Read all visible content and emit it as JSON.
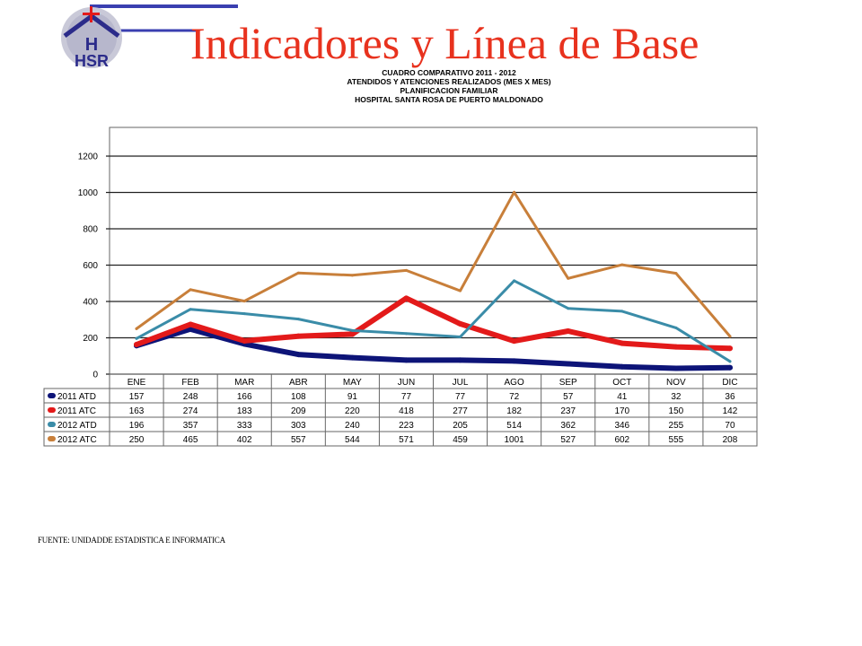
{
  "slide": {
    "title": "Indicadores y Línea de Base",
    "logo_text": "HSR",
    "source": "FUENTE: UNIDADDE ESTADISTICA E INFORMATICA"
  },
  "chart_header": [
    "CUADRO COMPARATIVO 2011 - 2012",
    "ATENDIDOS Y ATENCIONES  REALIZADOS (MES X MES)",
    "PLANIFICACION FAMILIAR",
    "HOSPITAL  SANTA ROSA DE PUERTO MALDONADO"
  ],
  "colors": {
    "title": "#e8321e",
    "2011 ATD": "#0d1478",
    "2011 ATC": "#e31a1a",
    "2012 ATD": "#3a8ca8",
    "2012 ATC": "#c87f3a"
  },
  "chart_data": {
    "type": "line",
    "title": "CUADRO COMPARATIVO 2011 - 2012 / ATENDIDOS Y ATENCIONES REALIZADOS (MES X MES) / PLANIFICACION FAMILIAR / HOSPITAL SANTA ROSA DE PUERTO MALDONADO",
    "categories": [
      "ENE",
      "FEB",
      "MAR",
      "ABR",
      "MAY",
      "JUN",
      "JUL",
      "AGO",
      "SEP",
      "OCT",
      "NOV",
      "DIC"
    ],
    "ylim": [
      0,
      1200
    ],
    "yticks": [
      0,
      200,
      400,
      600,
      800,
      1000,
      1200
    ],
    "grid": true,
    "legend": "data-table below chart",
    "series": [
      {
        "name": "2011 ATD",
        "values": [
          157,
          248,
          166,
          108,
          91,
          77,
          77,
          72,
          57,
          41,
          32,
          36
        ]
      },
      {
        "name": "2011 ATC",
        "values": [
          163,
          274,
          183,
          209,
          220,
          418,
          277,
          182,
          237,
          170,
          150,
          142
        ]
      },
      {
        "name": "2012 ATD",
        "values": [
          196,
          357,
          333,
          303,
          240,
          223,
          205,
          514,
          362,
          346,
          255,
          70
        ]
      },
      {
        "name": "2012 ATC",
        "values": [
          250,
          465,
          402,
          557,
          544,
          571,
          459,
          1001,
          527,
          602,
          555,
          208
        ]
      }
    ]
  }
}
